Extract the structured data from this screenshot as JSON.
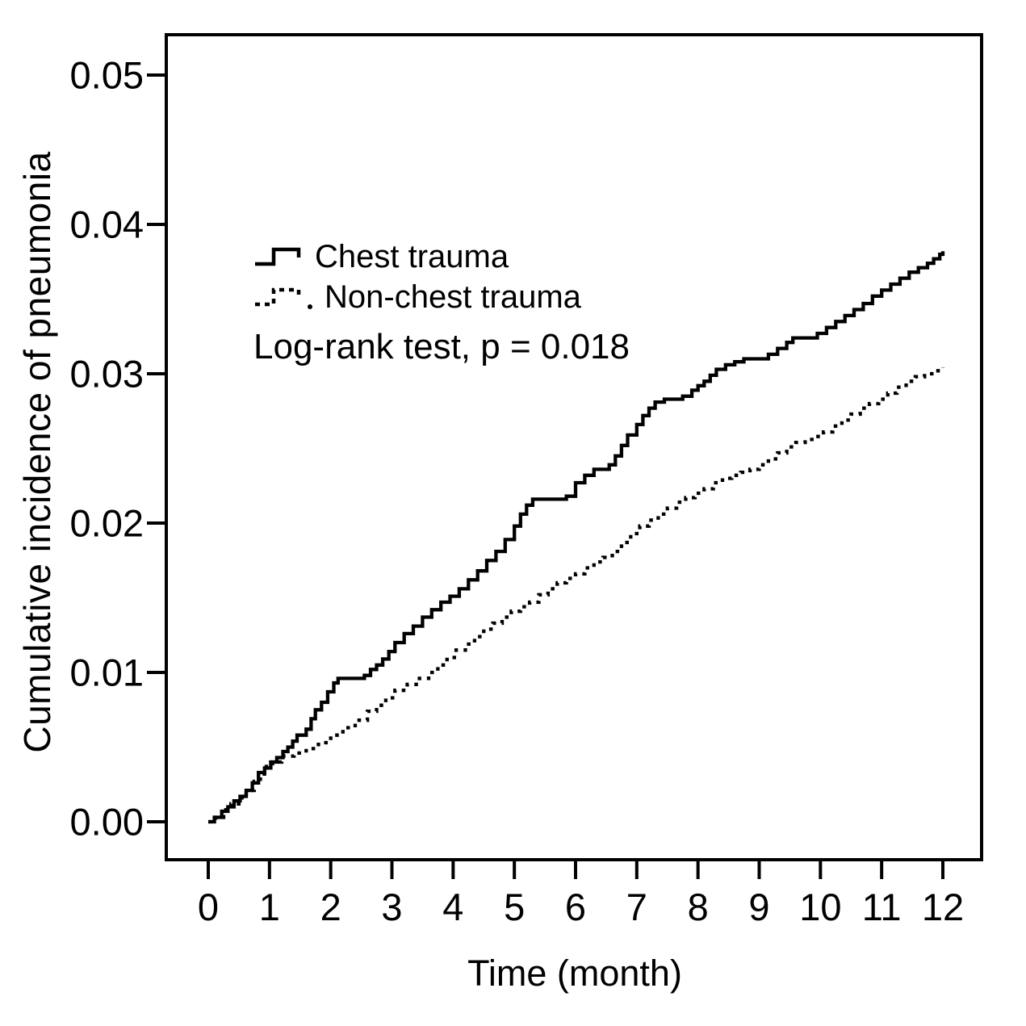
{
  "figure": {
    "background": "#ffffff",
    "ink": "#000000"
  },
  "chart_data": {
    "type": "line",
    "subtype": "kaplan-meier-cumulative-incidence-step",
    "title": "",
    "xlabel": "Time (month)",
    "ylabel": "Cumulative incidence of pneumonia",
    "xlim": [
      0,
      12
    ],
    "ylim": [
      0,
      0.05
    ],
    "grid": false,
    "frame": true,
    "xticks": {
      "values": [
        0,
        1,
        2,
        3,
        4,
        5,
        6,
        7,
        8,
        9,
        10,
        11,
        12
      ],
      "labels": [
        "0",
        "1",
        "2",
        "3",
        "4",
        "5",
        "6",
        "7",
        "8",
        "9",
        "10",
        "11",
        "12"
      ]
    },
    "yticks": {
      "values": [
        0,
        0.01,
        0.02,
        0.03,
        0.04,
        0.05
      ],
      "labels": [
        "0.00",
        "0.01",
        "0.02",
        "0.03",
        "0.04",
        "0.05"
      ]
    },
    "legend": {
      "position": "inside-upper-left",
      "entries": [
        {
          "label": "Chest trauma",
          "line_style": "solid"
        },
        {
          "label": "Non-chest trauma",
          "line_style": "dashed"
        }
      ]
    },
    "annotation": "Log-rank test, p = 0.018",
    "series": [
      {
        "name": "Chest trauma",
        "line_style": "solid",
        "points": [
          [
            0,
            0
          ],
          [
            0.1,
            0.0003
          ],
          [
            0.22,
            0.0007
          ],
          [
            0.32,
            0.001
          ],
          [
            0.42,
            0.0014
          ],
          [
            0.52,
            0.0017
          ],
          [
            0.62,
            0.0021
          ],
          [
            0.72,
            0.0026
          ],
          [
            0.82,
            0.0033
          ],
          [
            0.92,
            0.0036
          ],
          [
            1.02,
            0.004
          ],
          [
            1.12,
            0.0043
          ],
          [
            1.22,
            0.0047
          ],
          [
            1.3,
            0.005
          ],
          [
            1.38,
            0.0054
          ],
          [
            1.45,
            0.0058
          ],
          [
            1.6,
            0.0062
          ],
          [
            1.68,
            0.0069
          ],
          [
            1.75,
            0.0075
          ],
          [
            1.85,
            0.008
          ],
          [
            1.95,
            0.0087
          ],
          [
            2.05,
            0.0093
          ],
          [
            2.12,
            0.0096
          ],
          [
            2.55,
            0.0098
          ],
          [
            2.65,
            0.0102
          ],
          [
            2.75,
            0.0105
          ],
          [
            2.85,
            0.0109
          ],
          [
            2.95,
            0.0114
          ],
          [
            3.05,
            0.012
          ],
          [
            3.2,
            0.0126
          ],
          [
            3.35,
            0.0131
          ],
          [
            3.5,
            0.0137
          ],
          [
            3.65,
            0.0142
          ],
          [
            3.8,
            0.0147
          ],
          [
            3.95,
            0.0151
          ],
          [
            4.1,
            0.0156
          ],
          [
            4.25,
            0.0162
          ],
          [
            4.4,
            0.0168
          ],
          [
            4.55,
            0.0175
          ],
          [
            4.7,
            0.0181
          ],
          [
            4.85,
            0.0189
          ],
          [
            5.0,
            0.0198
          ],
          [
            5.1,
            0.0206
          ],
          [
            5.2,
            0.0212
          ],
          [
            5.3,
            0.0216
          ],
          [
            5.85,
            0.0218
          ],
          [
            6.0,
            0.0227
          ],
          [
            6.15,
            0.0232
          ],
          [
            6.3,
            0.0236
          ],
          [
            6.55,
            0.0239
          ],
          [
            6.65,
            0.0245
          ],
          [
            6.75,
            0.0252
          ],
          [
            6.85,
            0.0259
          ],
          [
            7.0,
            0.0266
          ],
          [
            7.1,
            0.0272
          ],
          [
            7.2,
            0.0277
          ],
          [
            7.3,
            0.0281
          ],
          [
            7.45,
            0.0283
          ],
          [
            7.75,
            0.0285
          ],
          [
            7.9,
            0.0289
          ],
          [
            8.0,
            0.0292
          ],
          [
            8.1,
            0.0295
          ],
          [
            8.2,
            0.0299
          ],
          [
            8.3,
            0.0303
          ],
          [
            8.45,
            0.0306
          ],
          [
            8.6,
            0.0308
          ],
          [
            8.75,
            0.031
          ],
          [
            9.15,
            0.0313
          ],
          [
            9.3,
            0.0317
          ],
          [
            9.45,
            0.0321
          ],
          [
            9.55,
            0.0324
          ],
          [
            9.95,
            0.0327
          ],
          [
            10.1,
            0.0331
          ],
          [
            10.25,
            0.0335
          ],
          [
            10.4,
            0.0339
          ],
          [
            10.55,
            0.0343
          ],
          [
            10.7,
            0.0347
          ],
          [
            10.85,
            0.0352
          ],
          [
            11.0,
            0.0356
          ],
          [
            11.15,
            0.036
          ],
          [
            11.3,
            0.0364
          ],
          [
            11.45,
            0.0368
          ],
          [
            11.6,
            0.0371
          ],
          [
            11.75,
            0.0374
          ],
          [
            11.85,
            0.0377
          ],
          [
            11.95,
            0.038
          ],
          [
            12.0,
            0.0382
          ]
        ]
      },
      {
        "name": "Non-chest trauma",
        "line_style": "dashed",
        "points": [
          [
            0,
            0
          ],
          [
            0.12,
            0.0003
          ],
          [
            0.25,
            0.0008
          ],
          [
            0.37,
            0.0012
          ],
          [
            0.5,
            0.0016
          ],
          [
            0.62,
            0.0021
          ],
          [
            0.75,
            0.0027
          ],
          [
            0.85,
            0.0032
          ],
          [
            0.95,
            0.0037
          ],
          [
            1.05,
            0.004
          ],
          [
            1.2,
            0.0044
          ],
          [
            1.4,
            0.0046
          ],
          [
            1.6,
            0.0049
          ],
          [
            1.8,
            0.0053
          ],
          [
            2.0,
            0.0058
          ],
          [
            2.2,
            0.0063
          ],
          [
            2.4,
            0.0068
          ],
          [
            2.6,
            0.0074
          ],
          [
            2.75,
            0.0078
          ],
          [
            2.9,
            0.0083
          ],
          [
            3.05,
            0.0088
          ],
          [
            3.25,
            0.0092
          ],
          [
            3.45,
            0.0096
          ],
          [
            3.6,
            0.01
          ],
          [
            3.75,
            0.0105
          ],
          [
            3.9,
            0.011
          ],
          [
            4.05,
            0.0115
          ],
          [
            4.2,
            0.0119
          ],
          [
            4.35,
            0.0124
          ],
          [
            4.5,
            0.0129
          ],
          [
            4.65,
            0.0133
          ],
          [
            4.8,
            0.0137
          ],
          [
            4.95,
            0.0141
          ],
          [
            5.1,
            0.0144
          ],
          [
            5.25,
            0.0147
          ],
          [
            5.4,
            0.0152
          ],
          [
            5.55,
            0.0156
          ],
          [
            5.7,
            0.016
          ],
          [
            5.85,
            0.0163
          ],
          [
            6.0,
            0.0166
          ],
          [
            6.15,
            0.017
          ],
          [
            6.3,
            0.0174
          ],
          [
            6.45,
            0.0177
          ],
          [
            6.6,
            0.0181
          ],
          [
            6.75,
            0.0187
          ],
          [
            6.9,
            0.0193
          ],
          [
            7.05,
            0.0198
          ],
          [
            7.2,
            0.0202
          ],
          [
            7.35,
            0.0206
          ],
          [
            7.5,
            0.021
          ],
          [
            7.65,
            0.0214
          ],
          [
            7.8,
            0.0217
          ],
          [
            7.95,
            0.022
          ],
          [
            8.1,
            0.0223
          ],
          [
            8.25,
            0.0227
          ],
          [
            8.4,
            0.023
          ],
          [
            8.55,
            0.0232
          ],
          [
            8.7,
            0.0234
          ],
          [
            8.85,
            0.0236
          ],
          [
            9.0,
            0.0239
          ],
          [
            9.15,
            0.0243
          ],
          [
            9.3,
            0.0247
          ],
          [
            9.45,
            0.0251
          ],
          [
            9.6,
            0.0254
          ],
          [
            9.75,
            0.0256
          ],
          [
            9.9,
            0.0258
          ],
          [
            10.05,
            0.0261
          ],
          [
            10.2,
            0.0265
          ],
          [
            10.35,
            0.0269
          ],
          [
            10.5,
            0.0273
          ],
          [
            10.65,
            0.0277
          ],
          [
            10.8,
            0.028
          ],
          [
            10.95,
            0.0283
          ],
          [
            11.1,
            0.0287
          ],
          [
            11.25,
            0.0291
          ],
          [
            11.4,
            0.0295
          ],
          [
            11.55,
            0.0298
          ],
          [
            11.7,
            0.03
          ],
          [
            11.85,
            0.0302
          ],
          [
            12.0,
            0.0304
          ]
        ]
      }
    ]
  }
}
